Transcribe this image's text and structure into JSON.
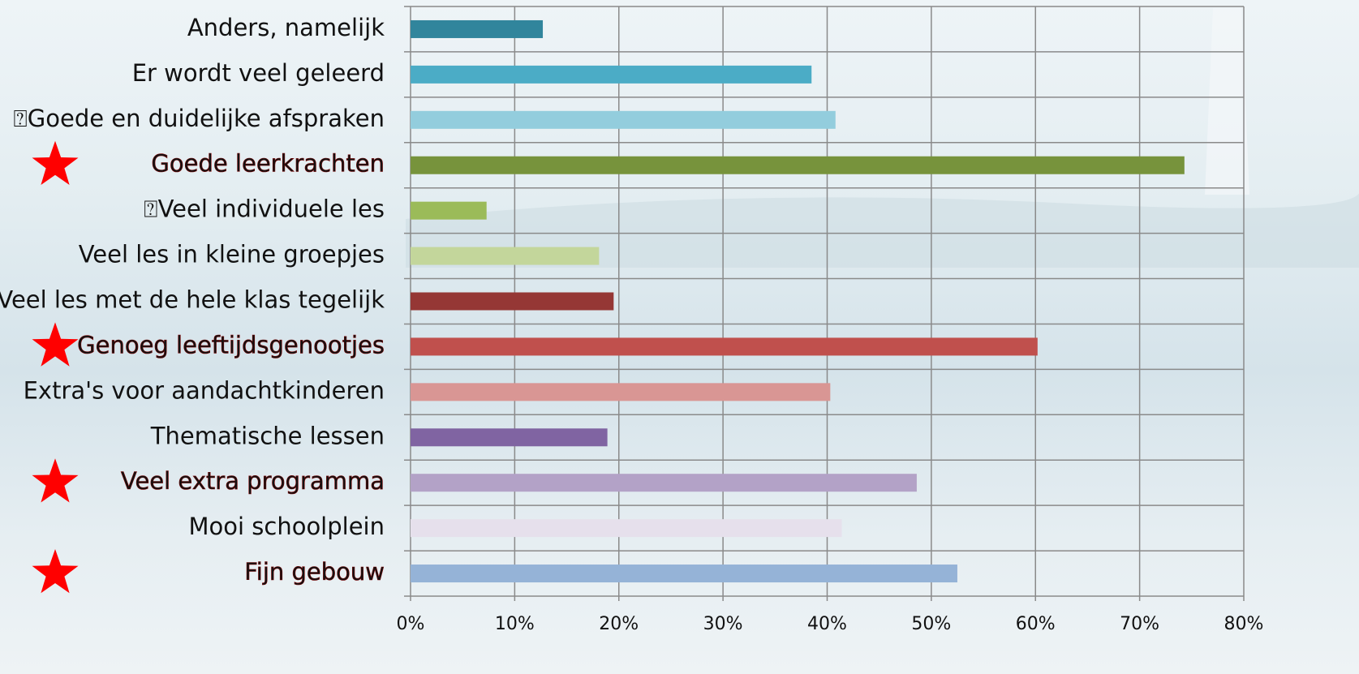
{
  "chart_data": {
    "type": "barh",
    "categories": [
      "Anders, namelijk",
      "Er wordt veel geleerd",
      "⍰Goede en duidelijke afspraken",
      "Goede leerkrachten",
      "⍰Veel individuele les",
      "Veel les in kleine groepjes",
      "Veel les met de hele klas tegelijk",
      "Genoeg leeftijdsgenootjes",
      "Extra's voor aandachtkinderen",
      "Thematische lessen",
      "Veel extra programma",
      "Mooi schoolplein",
      "Fijn gebouw"
    ],
    "values": [
      12.7,
      38.5,
      40.8,
      74.3,
      7.3,
      18.1,
      19.5,
      60.2,
      40.3,
      18.9,
      48.6,
      41.4,
      52.5
    ],
    "colors": [
      "#31859c",
      "#4bacc6",
      "#93cddd",
      "#77933c",
      "#9bbb59",
      "#c3d69b",
      "#953735",
      "#c0504d",
      "#d99694",
      "#8064a2",
      "#b3a2c7",
      "#e6e0ec",
      "#95b3d7"
    ],
    "highlighted": [
      3,
      7,
      10,
      12
    ],
    "highlight_color": "#ff0000",
    "xlim": [
      0,
      80
    ],
    "xticks": [
      {
        "value": 0,
        "label": "0%"
      },
      {
        "value": 10,
        "label": "10%"
      },
      {
        "value": 20,
        "label": "20%"
      },
      {
        "value": 30,
        "label": "30%"
      },
      {
        "value": 40,
        "label": "40%"
      },
      {
        "value": 50,
        "label": "50%"
      },
      {
        "value": 60,
        "label": "60%"
      },
      {
        "value": 70,
        "label": "70%"
      },
      {
        "value": 80,
        "label": "80%"
      }
    ],
    "grid": true
  }
}
